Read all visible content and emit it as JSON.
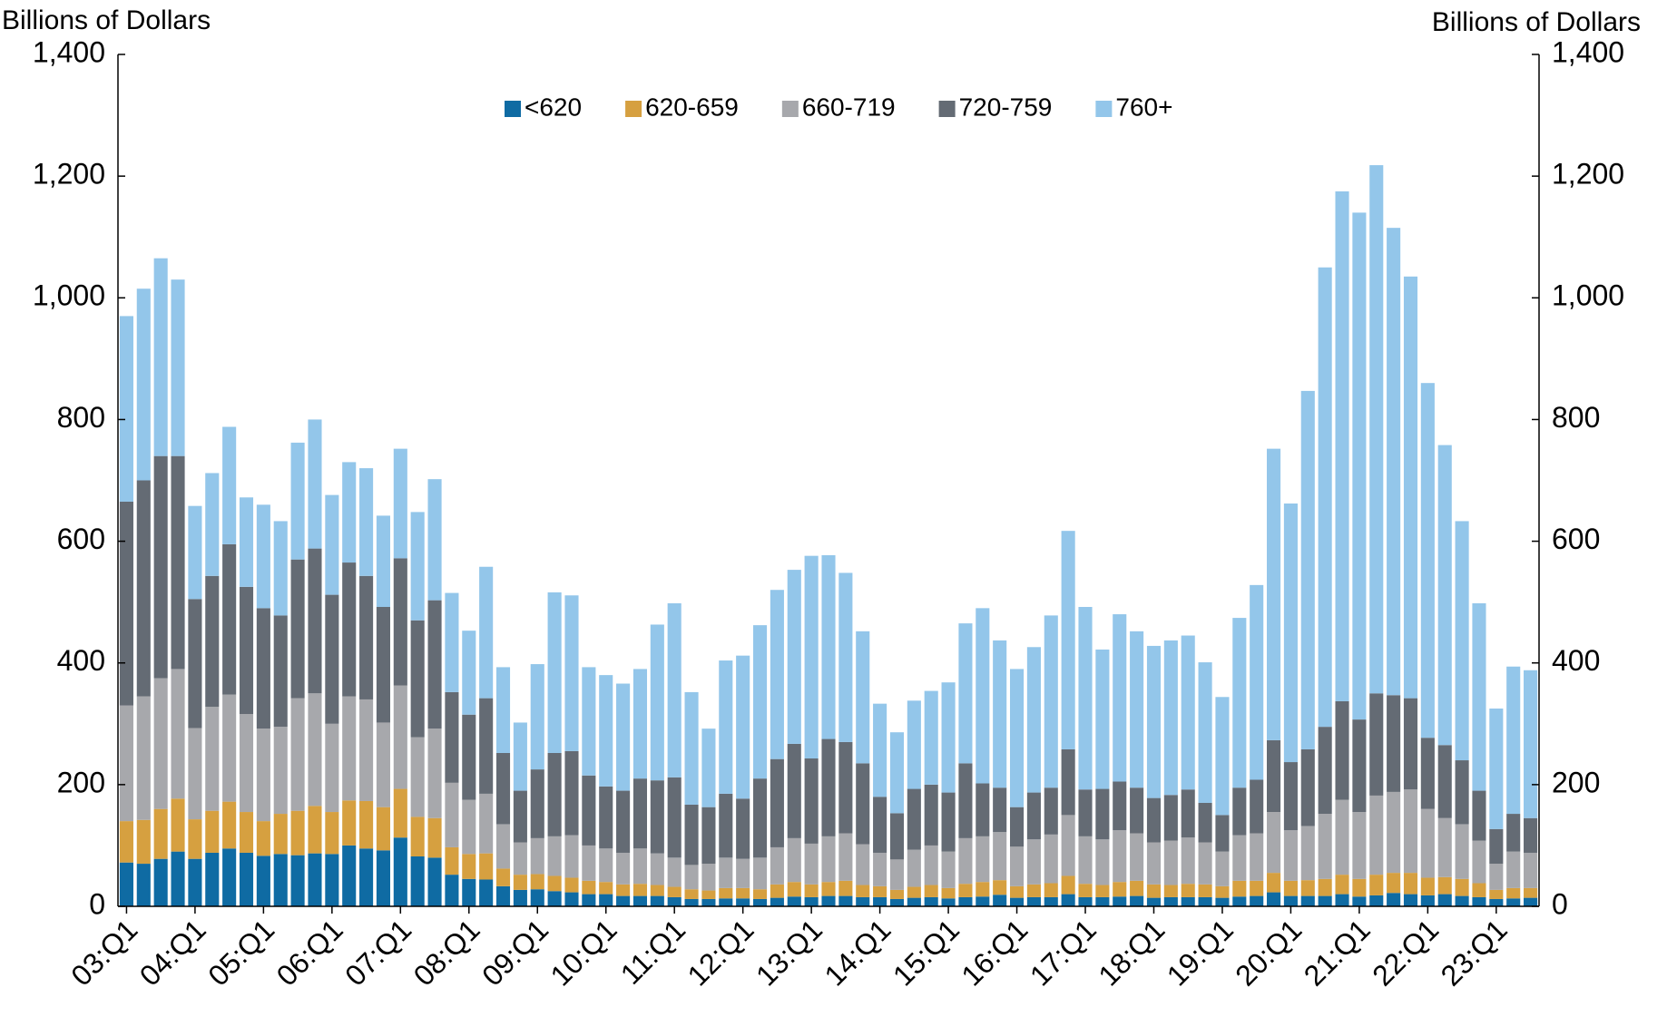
{
  "chart_data": {
    "type": "stacked_bar",
    "ylabel": "Billions of Dollars",
    "y2label": "Billions of Dollars",
    "categories": [
      "03:Q1",
      null,
      null,
      null,
      "04:Q1",
      null,
      null,
      null,
      "05:Q1",
      null,
      null,
      null,
      "06:Q1",
      null,
      null,
      null,
      "07:Q1",
      null,
      null,
      null,
      "08:Q1",
      null,
      null,
      null,
      "09:Q1",
      null,
      null,
      null,
      "10:Q1",
      null,
      null,
      null,
      "11:Q1",
      null,
      null,
      null,
      "12:Q1",
      null,
      null,
      null,
      "13:Q1",
      null,
      null,
      null,
      "14:Q1",
      null,
      null,
      null,
      "15:Q1",
      null,
      null,
      null,
      "16:Q1",
      null,
      null,
      null,
      "17:Q1",
      null,
      null,
      null,
      "18:Q1",
      null,
      null,
      null,
      "19:Q1",
      null,
      null,
      null,
      "20:Q1",
      null,
      null,
      null,
      "21:Q1",
      null,
      null,
      null,
      "22:Q1",
      null,
      null,
      null,
      "23:Q1",
      null,
      null
    ],
    "series": [
      {
        "name": "<620",
        "color": "#0f6ba3",
        "values": [
          72,
          70,
          78,
          90,
          78,
          88,
          95,
          88,
          83,
          86,
          84,
          87,
          86,
          100,
          95,
          92,
          113,
          82,
          80,
          52,
          45,
          44,
          33,
          27,
          28,
          25,
          23,
          20,
          20,
          17,
          17,
          17,
          15,
          12,
          12,
          13,
          13,
          12,
          14,
          16,
          15,
          17,
          17,
          15,
          15,
          12,
          14,
          15,
          13,
          15,
          16,
          19,
          14,
          15,
          15,
          20,
          15,
          15,
          16,
          17,
          14,
          15,
          15,
          15,
          14,
          16,
          17,
          23,
          17,
          17,
          17,
          20,
          16,
          18,
          22,
          20,
          18,
          20,
          17,
          15,
          12,
          13,
          14
        ]
      },
      {
        "name": "620-659",
        "color": "#d6a040",
        "values": [
          68,
          72,
          82,
          87,
          65,
          69,
          77,
          67,
          57,
          66,
          73,
          78,
          69,
          74,
          78,
          71,
          80,
          65,
          65,
          45,
          41,
          43,
          29,
          25,
          25,
          25,
          24,
          22,
          20,
          19,
          20,
          18,
          17,
          16,
          14,
          17,
          17,
          16,
          22,
          24,
          21,
          23,
          25,
          20,
          18,
          15,
          18,
          20,
          17,
          22,
          24,
          24,
          19,
          21,
          23,
          30,
          22,
          20,
          24,
          25,
          22,
          20,
          22,
          21,
          19,
          26,
          25,
          32,
          25,
          26,
          28,
          32,
          29,
          34,
          33,
          35,
          29,
          28,
          28,
          23,
          15,
          17,
          16
        ]
      },
      {
        "name": "660-719",
        "color": "#a7a8ac",
        "values": [
          190,
          203,
          215,
          213,
          150,
          171,
          176,
          161,
          152,
          143,
          185,
          185,
          145,
          171,
          167,
          139,
          170,
          131,
          147,
          106,
          89,
          98,
          73,
          53,
          59,
          65,
          70,
          58,
          55,
          52,
          58,
          52,
          48,
          40,
          44,
          50,
          48,
          52,
          61,
          72,
          67,
          75,
          78,
          67,
          55,
          50,
          61,
          65,
          60,
          75,
          75,
          79,
          65,
          74,
          80,
          100,
          78,
          75,
          85,
          78,
          69,
          73,
          76,
          69,
          57,
          75,
          78,
          100,
          83,
          89,
          107,
          123,
          110,
          130,
          133,
          137,
          113,
          97,
          90,
          70,
          43,
          60,
          58
        ]
      },
      {
        "name": "720-759",
        "color": "#646b74",
        "values": [
          335,
          355,
          365,
          350,
          212,
          215,
          247,
          209,
          198,
          183,
          228,
          238,
          212,
          220,
          203,
          190,
          209,
          192,
          211,
          149,
          140,
          157,
          117,
          85,
          113,
          137,
          138,
          115,
          102,
          102,
          115,
          120,
          132,
          99,
          93,
          105,
          99,
          130,
          145,
          155,
          140,
          160,
          150,
          133,
          92,
          76,
          100,
          100,
          97,
          123,
          87,
          73,
          65,
          77,
          77,
          108,
          77,
          83,
          80,
          75,
          73,
          75,
          79,
          65,
          60,
          78,
          88,
          118,
          112,
          126,
          143,
          162,
          152,
          168,
          159,
          150,
          117,
          120,
          105,
          82,
          57,
          62,
          57
        ]
      },
      {
        "name": "760+",
        "color": "#93c6ea",
        "values": [
          305,
          315,
          325,
          290,
          153,
          169,
          193,
          147,
          170,
          155,
          192,
          212,
          164,
          165,
          177,
          150,
          180,
          178,
          199,
          163,
          138,
          216,
          141,
          112,
          173,
          264,
          256,
          178,
          183,
          176,
          180,
          256,
          286,
          185,
          129,
          219,
          235,
          252,
          278,
          286,
          333,
          302,
          278,
          217,
          153,
          133,
          145,
          154,
          181,
          230,
          288,
          242,
          227,
          239,
          283,
          359,
          300,
          229,
          275,
          257,
          250,
          254,
          253,
          231,
          194,
          279,
          320,
          479,
          425,
          589,
          755,
          838,
          833,
          868,
          768,
          693,
          583,
          493,
          393,
          308,
          198,
          242,
          243
        ]
      }
    ],
    "ylim": [
      0,
      1400
    ],
    "yticks": [
      0,
      200,
      400,
      600,
      800,
      {
        "value": 1000,
        "label": "1,000"
      },
      {
        "value": 1200,
        "label": "1,200"
      },
      {
        "value": 1400,
        "label": "1,400"
      }
    ],
    "y2lim": [
      0,
      1400
    ],
    "y2ticks": [
      0,
      200,
      400,
      600,
      800,
      {
        "value": 1000,
        "label": "1,000"
      },
      {
        "value": 1200,
        "label": "1,200"
      },
      {
        "value": 1400,
        "label": "1,400"
      }
    ],
    "legend": "top"
  }
}
